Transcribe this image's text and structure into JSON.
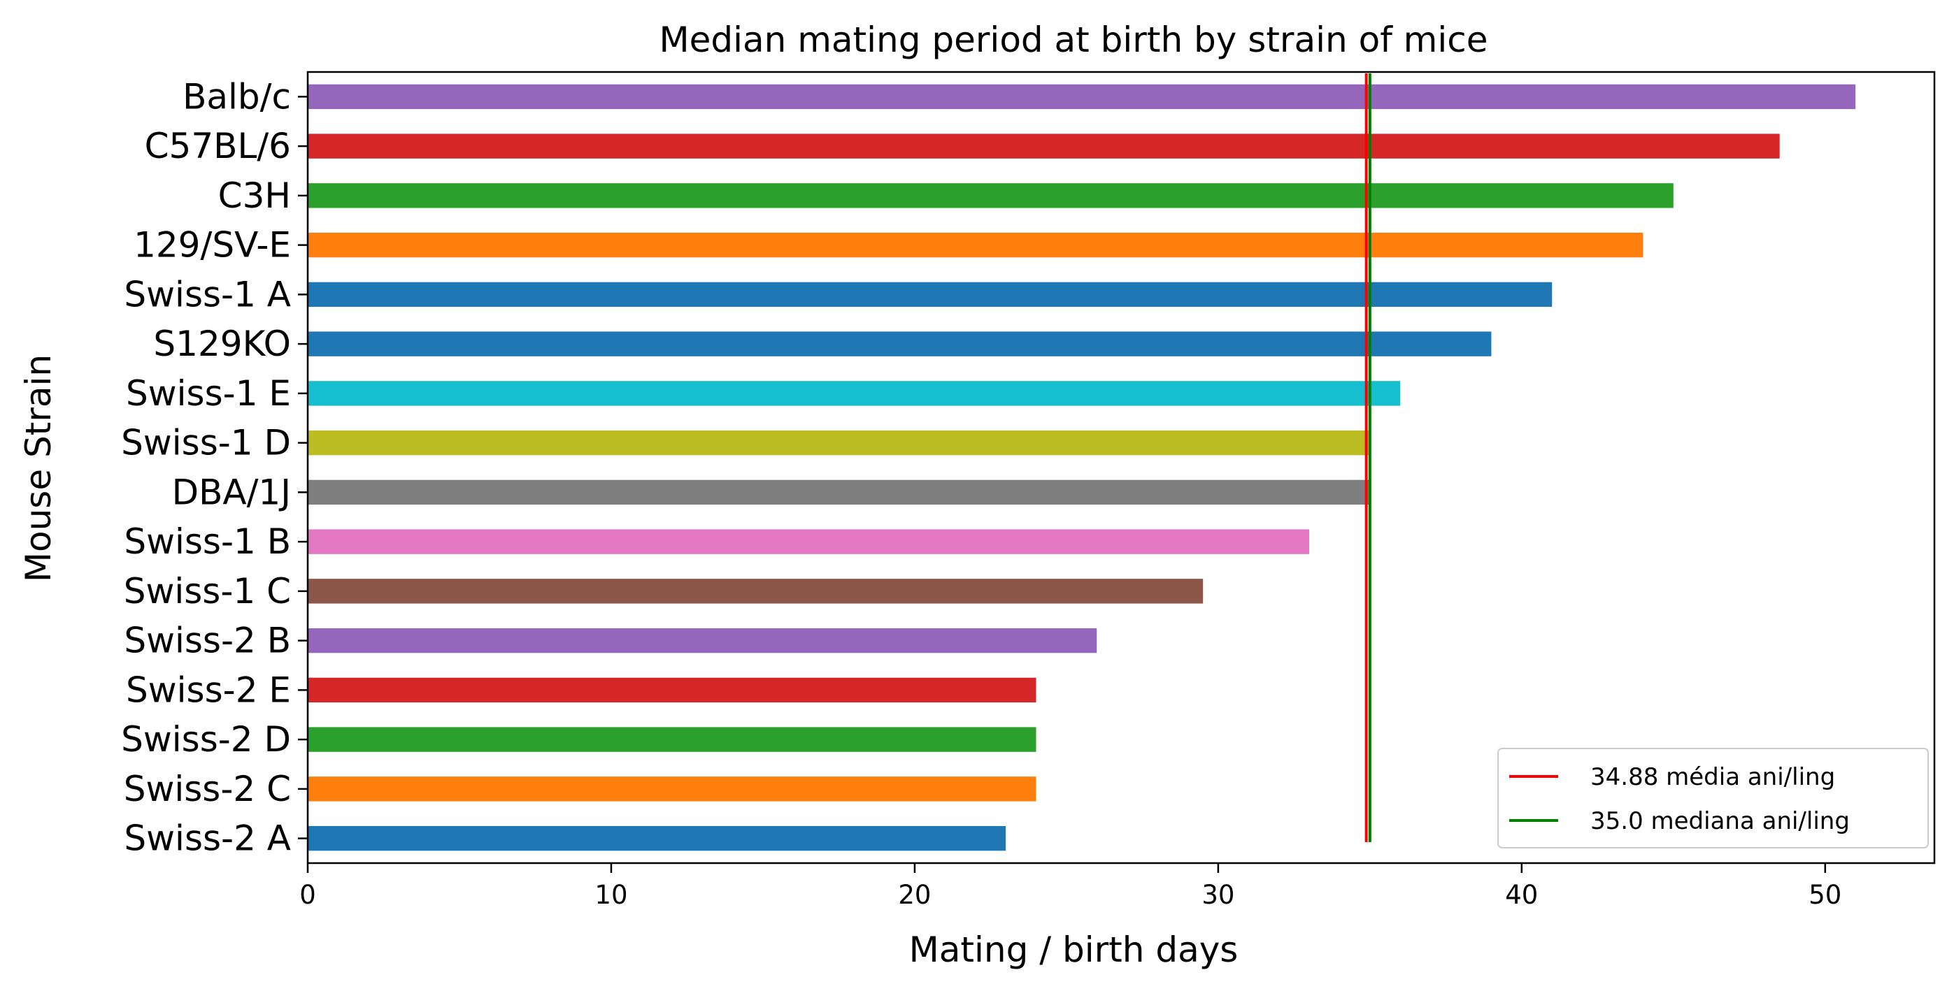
{
  "chart_data": {
    "type": "bar",
    "orientation": "horizontal",
    "title": "Median mating period at birth by strain of mice",
    "xlabel": "Mating / birth days",
    "ylabel": "Mouse Strain",
    "xlim": [
      0,
      53.6
    ],
    "xticks": [
      0,
      10,
      20,
      30,
      40,
      50
    ],
    "grid": false,
    "legend_position": "lower-right",
    "categories": [
      "Balb/c",
      "C57BL/6",
      "C3H",
      "129/SV-E",
      "Swiss-1 A",
      "S129KO",
      "Swiss-1 E",
      "Swiss-1 D",
      "DBA/1J",
      "Swiss-1 B",
      "Swiss-1 C",
      "Swiss-2 B",
      "Swiss-2 E",
      "Swiss-2 D",
      "Swiss-2 C",
      "Swiss-2 A"
    ],
    "values": [
      51,
      48.5,
      45,
      44,
      41,
      39,
      36,
      35,
      35,
      33,
      29.5,
      26,
      24,
      24,
      24,
      23
    ],
    "colors": [
      "#9467bd",
      "#d62728",
      "#2ca02c",
      "#ff7f0e",
      "#1f77b4",
      "#1f77b4",
      "#17becf",
      "#bcbd22",
      "#7f7f7f",
      "#e377c2",
      "#8c564b",
      "#9467bd",
      "#d62728",
      "#2ca02c",
      "#ff7f0e",
      "#1f77b4"
    ],
    "reference_lines": [
      {
        "value": 34.88,
        "color": "#ff0000",
        "label": "34.88 média ani/ling"
      },
      {
        "value": 35.0,
        "color": "#008000",
        "label": "35.0 mediana ani/ling"
      }
    ]
  }
}
